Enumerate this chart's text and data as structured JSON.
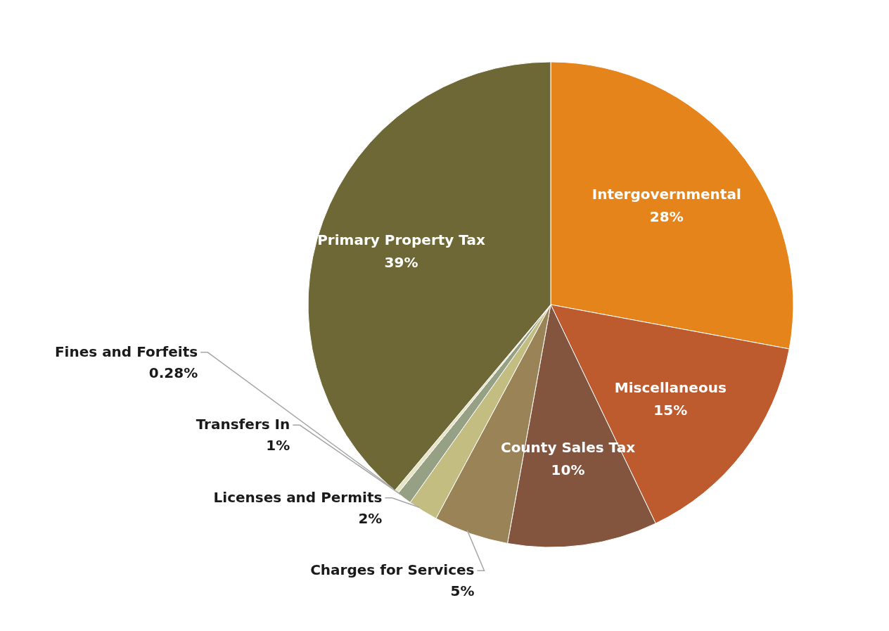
{
  "chart_data": {
    "type": "pie",
    "categories": [
      "Intergovernmental",
      "Miscellaneous",
      "County Sales Tax",
      "Charges for Services",
      "Licenses and Permits",
      "Transfers In",
      "Fines and Forfeits",
      "Primary Property Tax"
    ],
    "values": [
      28,
      15,
      10,
      5,
      2,
      1,
      0.28,
      39
    ],
    "value_labels": [
      "28%",
      "15%",
      "10%",
      "5%",
      "2%",
      "1%",
      "0.28%",
      "39%"
    ],
    "colors": [
      "#e5841a",
      "#bd5a2e",
      "#83553e",
      "#9b8358",
      "#c4bd82",
      "#95a085",
      "#e8e4c6",
      "#6d6835"
    ],
    "legend": false
  }
}
